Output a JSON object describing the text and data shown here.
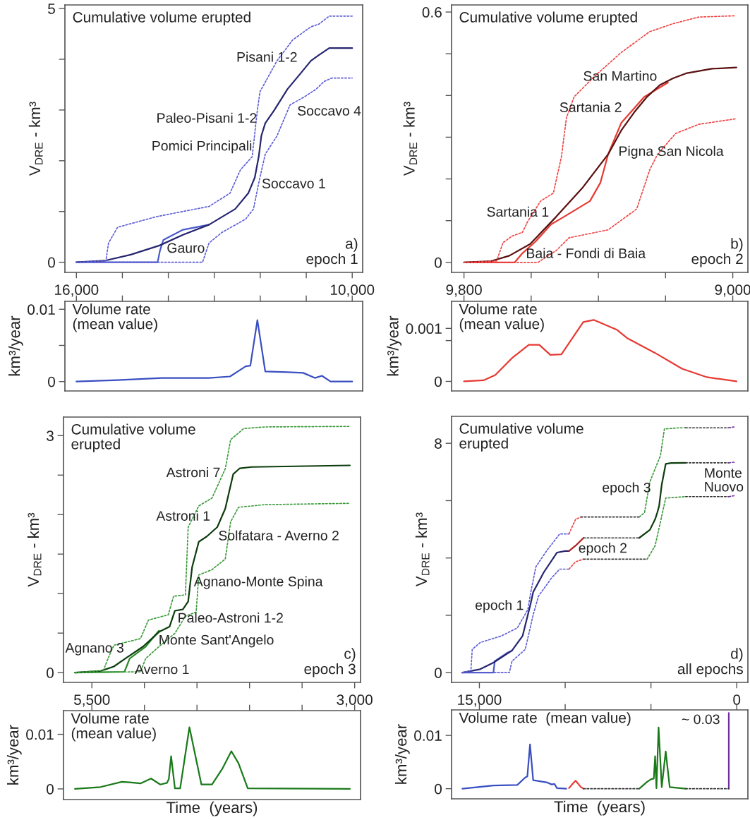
{
  "chart_data": [
    {
      "type": "line",
      "title": "Cumulative volume erupted",
      "ylabel": "V$_{DRE}$ - km³",
      "xlim": [
        16250,
        9773
      ],
      "ylim": [
        -0.2,
        5.07
      ],
      "xticks": [
        {
          "value": 16000,
          "label": "16,000"
        },
        {
          "value": 15000,
          "label": null
        },
        {
          "value": 14000,
          "label": null
        },
        {
          "value": 13000,
          "label": null
        },
        {
          "value": 12000,
          "label": null
        },
        {
          "value": 11000,
          "label": null
        },
        {
          "value": 10000,
          "label": "10,000"
        }
      ],
      "yticks": [
        0,
        {
          "value": 1,
          "label": null
        },
        {
          "value": 2,
          "label": null
        },
        {
          "value": 3,
          "label": null
        },
        {
          "value": 4,
          "label": null
        },
        5
      ],
      "annotations": [
        "Pisani 1-2",
        "Soccavo 4",
        "Paleo-Pisani 1-2",
        "Pomici Principali",
        "Soccavo 1",
        "Gauro",
        "a)\nepoch 1"
      ],
      "series": [
        {
          "color": "#5f5fd6",
          "line_style": "dotted",
          "x": [
            16000,
            15358,
            15301,
            15102,
            14250,
            13114,
            12659,
            12432,
            12176,
            12063,
            12006,
            11636,
            11295,
            10898,
            10727,
            10500,
            10000
          ],
          "values": [
            0,
            0.03,
            0.38,
            0.69,
            0.9,
            1.1,
            1.36,
            1.82,
            2.08,
            3.0,
            3.36,
            3.97,
            4.38,
            4.64,
            4.69,
            4.85,
            4.85
          ]
        },
        {
          "color": "#5f5fd6",
          "line_style": "dotted",
          "x": [
            16000,
            13256,
            13114,
            12830,
            12318,
            12148,
            12034,
            11892,
            11636,
            11352,
            11040,
            10784,
            10614,
            10443,
            10000
          ],
          "values": [
            0,
            0,
            0.38,
            0.59,
            0.85,
            1.05,
            1.56,
            2.13,
            2.49,
            3.1,
            3.26,
            3.41,
            3.56,
            3.63,
            3.63
          ]
        },
        {
          "color": "#4a5ac8",
          "line_style": "solid",
          "x": [
            16000,
            14233,
            14182,
            14108,
            13682,
            13114
          ],
          "values": [
            0,
            0,
            0.23,
            0.44,
            0.64,
            0.74
          ]
        },
        {
          "color": "#262670",
          "line_style": "solid",
          "x": [
            16000,
            15386,
            14818,
            14193,
            13682,
            13114,
            12545,
            12261,
            12119,
            12034,
            11977,
            11892,
            11693,
            11409,
            11125,
            10898,
            10727,
            10500,
            10000
          ],
          "values": [
            0,
            0.03,
            0.15,
            0.33,
            0.54,
            0.74,
            1.05,
            1.36,
            1.67,
            2.08,
            2.49,
            2.74,
            3.0,
            3.41,
            3.72,
            3.97,
            4.08,
            4.22,
            4.22
          ]
        }
      ]
    },
    {
      "type": "line",
      "title": "Volume rate\n(mean value)",
      "ylabel": "km³/year",
      "tick_labels": "y",
      "xlim": [
        16250,
        9773
      ],
      "ylim": [
        -0.0013,
        0.0111
      ],
      "xticks": [
        16000,
        15000,
        14000,
        13000,
        12000,
        11000,
        10000
      ],
      "yticks": [
        0,
        {
          "value": 0.005,
          "label": null
        },
        0.01
      ],
      "series": [
        {
          "color": "#3a4fc0",
          "line_style": "solid",
          "x": [
            16000,
            15102,
            14136,
            13114,
            12659,
            12489,
            12318,
            12216,
            12063,
            11892,
            11409,
            11068,
            10812,
            10659,
            10472,
            10000
          ],
          "values": [
            0,
            0.0002,
            0.0005,
            0.0005,
            0.0007,
            0.0014,
            0.0021,
            0.0022,
            0.0085,
            0.0014,
            0.0013,
            0.0012,
            0.0005,
            0.0008,
            0,
            0
          ]
        }
      ]
    },
    {
      "type": "line",
      "title": "Cumulative volume erupted",
      "ylabel": "V$_{DRE}$ - km³",
      "xlim": [
        9837,
        8955
      ],
      "ylim": [
        -0.024,
        0.617
      ],
      "xticks": [
        {
          "value": 9800,
          "label": "9,800"
        },
        {
          "value": 9600,
          "label": null
        },
        {
          "value": 9400,
          "label": null
        },
        {
          "value": 9200,
          "label": null
        },
        {
          "value": 9000,
          "label": "9,000"
        }
      ],
      "yticks": [
        0,
        {
          "value": 0.1,
          "label": null
        },
        {
          "value": 0.2,
          "label": null
        },
        {
          "value": 0.3,
          "label": null
        },
        {
          "value": 0.4,
          "label": null
        },
        {
          "value": 0.5,
          "label": null
        },
        0.6
      ],
      "annotations": [
        "San Martino",
        "Sartania 2",
        "Pigna San Nicola",
        "Sartania 1",
        "Baia - Fondi di Baia",
        "b)\nepoch 2"
      ],
      "series": [
        {
          "color": "#ee4444",
          "line_style": "dotted",
          "x": [
            9800,
            9703,
            9684,
            9657,
            9626,
            9611,
            9572,
            9534,
            9510,
            9495,
            9472,
            9410,
            9332,
            9247,
            9178,
            9101,
            8992
          ],
          "values": [
            0,
            0.003,
            0.047,
            0.063,
            0.072,
            0.097,
            0.147,
            0.166,
            0.253,
            0.347,
            0.397,
            0.447,
            0.503,
            0.553,
            0.572,
            0.588,
            0.591
          ]
        },
        {
          "color": "#ee4444",
          "line_style": "dotted",
          "x": [
            9800,
            9580,
            9526,
            9487,
            9371,
            9286,
            9247,
            9224,
            9170,
            9101,
            8992
          ],
          "values": [
            0,
            0,
            0.028,
            0.059,
            0.078,
            0.128,
            0.222,
            0.259,
            0.309,
            0.331,
            0.344
          ]
        },
        {
          "color": "#e63a32",
          "line_style": "solid",
          "x": [
            9800,
            9649,
            9626,
            9587,
            9541,
            9503,
            9425,
            9394,
            9371,
            9332,
            9263,
            9193
          ],
          "values": [
            0,
            0,
            0.022,
            0.05,
            0.091,
            0.109,
            0.147,
            0.191,
            0.259,
            0.334,
            0.397,
            0.431
          ]
        },
        {
          "color": "#5a1010",
          "line_style": "solid",
          "x": [
            9800,
            9719,
            9665,
            9603,
            9526,
            9448,
            9371,
            9332,
            9294,
            9255,
            9217,
            9178,
            9139,
            9062,
            8989
          ],
          "values": [
            0,
            0.003,
            0.016,
            0.044,
            0.109,
            0.178,
            0.259,
            0.316,
            0.359,
            0.397,
            0.425,
            0.441,
            0.453,
            0.464,
            0.467
          ]
        }
      ]
    },
    {
      "type": "line",
      "title": "Volume rate\n(mean value)",
      "ylabel": "km³/year",
      "tick_labels": "y",
      "xlim": [
        9837,
        8955
      ],
      "ylim": [
        -0.00018,
        0.00151
      ],
      "xticks": [
        9800,
        9600,
        9400,
        9200,
        9000
      ],
      "yticks": [
        0,
        {
          "value": 0.00077,
          "label": null
        },
        0.001
      ],
      "series": [
        {
          "color": "#e63a32",
          "line_style": "solid",
          "x": [
            9800,
            9742,
            9707,
            9657,
            9607,
            9576,
            9543,
            9510,
            9445,
            9414,
            9344,
            9313,
            9232,
            9151,
            9077,
            8989
          ],
          "values": [
            0,
            2e-05,
            0.00012,
            0.00044,
            0.00069,
            0.00069,
            0.0005,
            0.00051,
            0.00112,
            0.00116,
            0.00097,
            0.00081,
            0.00054,
            0.00024,
            8e-05,
            0
          ]
        }
      ]
    },
    {
      "type": "line",
      "title": "Cumulative volume\nerupted",
      "ylabel": "V$_{DRE}$ - km³",
      "xlim": [
        5770,
        2944
      ],
      "ylim": [
        -0.124,
        3.235
      ],
      "xticks": [
        {
          "value": 5500,
          "label": "5,500"
        },
        {
          "value": 5000,
          "label": null
        },
        {
          "value": 4500,
          "label": null
        },
        {
          "value": 4000,
          "label": null
        },
        {
          "value": 3500,
          "label": null
        },
        {
          "value": 3000,
          "label": "3,000"
        }
      ],
      "yticks": [
        0,
        {
          "value": 0.5,
          "label": null
        },
        {
          "value": 1,
          "label": null
        },
        {
          "value": 1.5,
          "label": null
        },
        {
          "value": 2,
          "label": null
        },
        {
          "value": 2.5,
          "label": null
        },
        3
      ],
      "annotations": [
        "Astroni 7",
        "Astroni 1",
        "Solfatara - Averno 2",
        "Agnano-Monte Spina",
        "Paleo-Astroni 1-2",
        "Monte Sant'Angelo",
        "Agnano 3",
        "Averno 1",
        "c)\nepoch 3"
      ],
      "series": [
        {
          "color": "#3a9a3a",
          "line_style": "dotted",
          "x": [
            5661,
            5391,
            5341,
            5291,
            5038,
            4962,
            4773,
            4723,
            4610,
            4584,
            4483,
            4357,
            4231,
            4180,
            4054,
            3853,
            3045
          ],
          "values": [
            0,
            0.027,
            0.195,
            0.346,
            0.43,
            0.665,
            0.732,
            0.967,
            0.984,
            1.841,
            2.11,
            2.21,
            2.58,
            2.949,
            3.09,
            3.11,
            3.117
          ]
        },
        {
          "color": "#3a9a3a",
          "line_style": "dotted",
          "x": [
            5661,
            5038,
            4988,
            4862,
            4710,
            4610,
            4508,
            4483,
            4357,
            4231,
            4180,
            4105,
            3853,
            3045
          ],
          "values": [
            0,
            0.01,
            0.178,
            0.329,
            0.497,
            0.715,
            0.766,
            1.236,
            1.303,
            1.438,
            1.908,
            2.093,
            2.126,
            2.143
          ]
        },
        {
          "color": "#2a8a2a",
          "line_style": "solid",
          "x": [
            5661,
            5190,
            5140,
            4988,
            4862
          ],
          "values": [
            0,
            0.01,
            0.178,
            0.329,
            0.53
          ]
        },
        {
          "color": "#0d3d0d",
          "line_style": "solid",
          "x": [
            5661,
            5417,
            5291,
            5164,
            5013,
            4862,
            4761,
            4710,
            4635,
            4584,
            4546,
            4483,
            4407,
            4307,
            4231,
            4155,
            4092,
            3979,
            3045
          ],
          "values": [
            0,
            0.02,
            0.077,
            0.195,
            0.329,
            0.514,
            0.581,
            0.783,
            0.8,
            0.9,
            1.337,
            1.656,
            1.723,
            1.841,
            2.076,
            2.513,
            2.587,
            2.603,
            2.623
          ]
        }
      ]
    },
    {
      "type": "line",
      "title": "Volume rate\n(mean value)",
      "ylabel": "km³/year",
      "xlabel": "Time  (years)",
      "tick_labels": "y",
      "xlim": [
        5770,
        2944
      ],
      "ylim": [
        -0.00195,
        0.01434
      ],
      "xticks": [
        5500,
        5000,
        4500,
        4000,
        3500,
        3000
      ],
      "yticks": [
        0,
        0.01
      ],
      "series": [
        {
          "color": "#1a7a1a",
          "line_style": "solid",
          "x": [
            5661,
            5417,
            5215,
            5140,
            5038,
            4937,
            4849,
            4786,
            4768,
            4746,
            4710,
            4660,
            4572,
            4458,
            4357,
            4256,
            4173,
            4105,
            4017,
            3045
          ],
          "values": [
            0,
            0.00034,
            0.0013,
            0.0012,
            0.001,
            0.0019,
            0.0008,
            0.0011,
            0.0018,
            0.006,
            0.0001,
            0.0001,
            0.0113,
            0.0008,
            0.0008,
            0.0038,
            0.0069,
            0.0047,
            0.0001,
            0
          ]
        }
      ]
    },
    {
      "type": "line",
      "title": "Cumulative volume\nerupted",
      "ylabel": "V$_{DRE}$ - km³",
      "xlim": [
        16622,
        -649
      ],
      "ylim": [
        -0.34,
        8.94
      ],
      "xticks": [
        {
          "value": 15000,
          "label": "15,000"
        },
        {
          "value": 10000,
          "label": null
        },
        {
          "value": 5000,
          "label": null
        },
        0
      ],
      "yticks": [
        0,
        {
          "value": 2,
          "label": null
        },
        {
          "value": 4,
          "label": null
        },
        {
          "value": 6,
          "label": null
        },
        8
      ],
      "annotations": [
        "epoch 3",
        "Monte\nNuovo",
        "epoch 2",
        "epoch 1",
        "d)\nall epochs"
      ],
      "series": [
        {
          "color": "#5f5fd6",
          "line_style": "dotted",
          "x": [
            15989,
            15494,
            15417,
            14954,
            13718,
            12791,
            12173,
            12018,
            11709,
            11091,
            10319,
            9778
          ],
          "values": [
            0,
            0.07,
            0.81,
            1.05,
            1.28,
            1.56,
            2.2,
            2.76,
            3.69,
            4.24,
            4.84,
            4.84
          ]
        },
        {
          "color": "#5f5fd6",
          "line_style": "dotted",
          "x": [
            15989,
            13254,
            13100,
            12327,
            11864,
            11555,
            10782,
            10319,
            9778
          ],
          "values": [
            0,
            0,
            0.4,
            0.81,
            2.02,
            2.67,
            3.31,
            3.61,
            3.61
          ]
        },
        {
          "color": "#ee4444",
          "line_style": "dotted",
          "x": [
            9778,
            9392,
            9083
          ],
          "values": [
            4.84,
            5.35,
            5.43
          ]
        },
        {
          "color": "#ee4444",
          "line_style": "dotted",
          "x": [
            9778,
            9392,
            8929
          ],
          "values": [
            3.61,
            3.87,
            3.96
          ]
        },
        {
          "color": "#333333",
          "line_style": "dotted",
          "x": [
            9083,
            5684
          ],
          "values": [
            5.43,
            5.43
          ]
        },
        {
          "color": "#333333",
          "line_style": "dotted",
          "x": [
            8929,
            5221
          ],
          "values": [
            3.96,
            3.96
          ]
        },
        {
          "color": "#333333",
          "line_style": "dotted",
          "x": [
            8929,
            5684
          ],
          "values": [
            4.7,
            4.7
          ]
        },
        {
          "color": "#3a9a3a",
          "line_style": "dotted",
          "x": [
            5684,
            5375,
            5066,
            4448,
            4216,
            3367,
            2981
          ],
          "values": [
            5.43,
            5.58,
            6.65,
            7.57,
            8.5,
            8.54,
            8.54
          ]
        },
        {
          "color": "#3a9a3a",
          "line_style": "dotted",
          "x": [
            5221,
            4757,
            4448,
            4140,
            2981
          ],
          "values": [
            3.96,
            4.43,
            5.26,
            6.09,
            6.14
          ]
        },
        {
          "color": "#333333",
          "line_style": "dotted",
          "x": [
            2981,
            463
          ],
          "values": [
            8.54,
            8.54
          ]
        },
        {
          "color": "#333333",
          "line_style": "dotted",
          "x": [
            2981,
            463
          ],
          "values": [
            7.32,
            7.32
          ]
        },
        {
          "color": "#333333",
          "line_style": "dotted",
          "x": [
            2981,
            463
          ],
          "values": [
            6.14,
            6.14
          ]
        },
        {
          "color": "#7030a0",
          "line_style": "dotted",
          "x": [
            463,
            155
          ],
          "values": [
            8.54,
            8.57
          ]
        },
        {
          "color": "#7030a0",
          "line_style": "dotted",
          "x": [
            463,
            155
          ],
          "values": [
            7.32,
            7.34
          ]
        },
        {
          "color": "#7030a0",
          "line_style": "dotted",
          "x": [
            463,
            155
          ],
          "values": [
            6.14,
            6.17
          ]
        },
        {
          "color": "#4a5ac8",
          "line_style": "solid",
          "x": [
            15989,
            14181,
            14104,
            13409,
            13100
          ],
          "values": [
            0,
            0,
            0.4,
            0.68,
            0.77
          ]
        },
        {
          "color": "#262670",
          "line_style": "solid",
          "x": [
            15989,
            14954,
            14181,
            13100,
            12482,
            12018,
            11864,
            11246,
            10473,
            10010,
            9778
          ],
          "values": [
            0,
            0.12,
            0.35,
            0.77,
            1.28,
            2.39,
            2.81,
            3.5,
            4.19,
            4.24,
            4.24
          ]
        },
        {
          "color": "#b02020",
          "line_style": "solid",
          "x": [
            9778,
            9392,
            8929
          ],
          "values": [
            4.24,
            4.43,
            4.7
          ]
        },
        {
          "color": "#0d3d0d",
          "line_style": "solid",
          "x": [
            5684,
            5066,
            4757,
            4633,
            4525,
            4371,
            4140,
            3830,
            2981
          ],
          "values": [
            4.7,
            4.98,
            5.35,
            5.58,
            5.81,
            6.56,
            7.28,
            7.31,
            7.32
          ]
        }
      ]
    },
    {
      "type": "line",
      "title": "Volume rate  (mean value)",
      "ylabel": "km³/year",
      "xlabel": "Time  (years)",
      "tick_labels": "y",
      "xlim": [
        16622,
        -649
      ],
      "ylim": [
        -0.0019,
        0.01478
      ],
      "xticks": [
        15000,
        10000,
        5000,
        0
      ],
      "yticks": [
        0,
        0.01
      ],
      "annotations": [
        "~ 0.03"
      ],
      "series": [
        {
          "color": "#3a4fc0",
          "line_style": "solid",
          "x": [
            15989,
            14181,
            12791,
            12327,
            12204,
            12049,
            11864,
            11091,
            10782,
            10627,
            10473,
            9933
          ],
          "values": [
            0,
            0.0006,
            0.0007,
            0.0021,
            0.0023,
            0.0083,
            0.0016,
            0.0012,
            0.0008,
            0.0009,
            0.0001,
            0
          ]
        },
        {
          "color": "#e63a32",
          "line_style": "solid",
          "x": [
            9778,
            9624,
            9392,
            9083,
            8929
          ],
          "values": [
            0.0001,
            0.0007,
            0.0015,
            0.0003,
            0
          ]
        },
        {
          "color": "#333333",
          "line_style": "dotted",
          "x": [
            8929,
            5684
          ],
          "values": [
            0,
            0
          ]
        },
        {
          "color": "#1a7a1a",
          "line_style": "solid",
          "x": [
            5684,
            5221,
            4989,
            4835,
            4757,
            4680,
            4556,
            4371,
            4140,
            3908,
            2981
          ],
          "values": [
            0,
            0.0013,
            0.0018,
            0.0019,
            0.0061,
            0.0001,
            0.0115,
            0.0003,
            0.007,
            0.0003,
            0
          ]
        },
        {
          "color": "#333333",
          "line_style": "dotted",
          "x": [
            2981,
            463
          ],
          "values": [
            0,
            0
          ]
        },
        {
          "color": "#7030a0",
          "line_style": "solid",
          "x": [
            463,
            463
          ],
          "values": [
            0,
            0.0142
          ]
        }
      ]
    }
  ]
}
